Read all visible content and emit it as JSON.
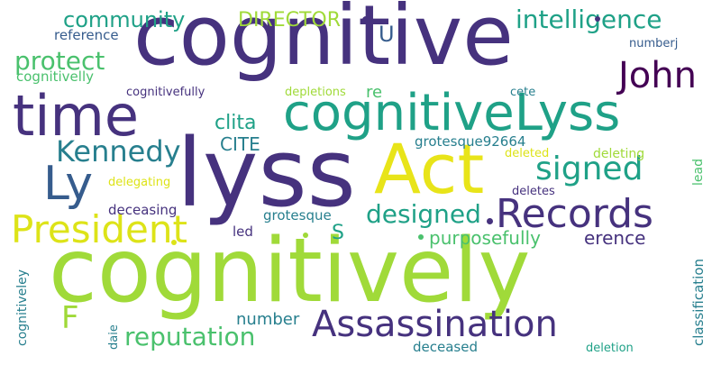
{
  "palette": {
    "dark_purple": "#46327e",
    "deep_purple": "#440154",
    "slate_blue": "#365c8d",
    "teal_blue": "#277f8e",
    "teal": "#1fa187",
    "green": "#4ac16d",
    "lime": "#a0da39",
    "yellow": "#e8e419",
    "light_green": "#9fd938",
    "pale_yellow": "#dde318"
  },
  "words": {
    "cognitive": "cognitive",
    "cognitively": "cognitively",
    "lyss": "lyss",
    "time": "time",
    "cognitiveLyss": "cognitiveLyss",
    "Act": "Act",
    "Ly": "Ly",
    "John": "John",
    "Records": "Records",
    "President": "President",
    "Assassination": "Assassination",
    "signed": "signed",
    "Kennedy": "Kennedy",
    "designed": "designed",
    "intelligence": "intelligence",
    "community": "community",
    "DIRECTOR": "DIRECTOR",
    "protect": "protect",
    "reputation": "reputation",
    "F": "F",
    "U": "U",
    "S": "S",
    "purposefully": "purposefully",
    "CITE": "CITE",
    "clita": "clita",
    "re": "re",
    "erence": "erence",
    "number": "number",
    "reference": "reference",
    "cognitivelly": "cognitivelly",
    "cognitivefully": "cognitivefully",
    "depletions": "depletions",
    "cete": "cete",
    "numberj": "numberj",
    "grotesque92664": "grotesque92664",
    "deleted": "deleted",
    "deleting": "deleting",
    "delegating": "delegating",
    "deletes": "deletes",
    "deceasing": "deceasing",
    "grotesque": "grotesque",
    "led": "led",
    "lead": "lead",
    "classification": "classification",
    "cognitiveley": "cognitiveley",
    "daie": "daie",
    "deceased": "deceased",
    "deletion": "deletion"
  }
}
